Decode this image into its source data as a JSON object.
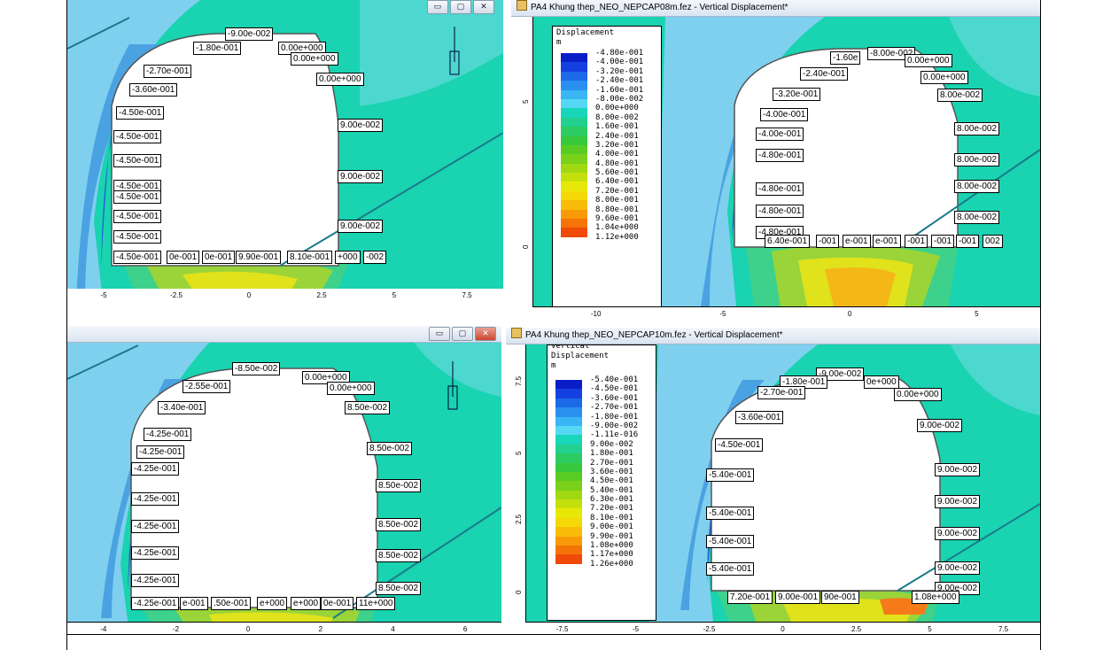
{
  "panels": {
    "top_left": {
      "title": "",
      "labels": [
        {
          "text": "-9.00e-002",
          "x": 178,
          "y": 31
        },
        {
          "text": "-1.80e-001",
          "x": 142,
          "y": 47
        },
        {
          "text": "0.00e+000",
          "x": 238,
          "y": 47
        },
        {
          "text": "0.00e+000",
          "x": 252,
          "y": 59
        },
        {
          "text": "-2.70e-001",
          "x": 86,
          "y": 73
        },
        {
          "text": "-3.60e-001",
          "x": 70,
          "y": 94
        },
        {
          "text": "0.00e+000",
          "x": 281,
          "y": 82
        },
        {
          "text": "-4.50e-001",
          "x": 55,
          "y": 120
        },
        {
          "text": "9.00e-002",
          "x": 305,
          "y": 134
        },
        {
          "text": "-4.50e-001",
          "x": 52,
          "y": 147
        },
        {
          "text": "-4.50e-001",
          "x": 52,
          "y": 174
        },
        {
          "text": "9.00e-002",
          "x": 305,
          "y": 192
        },
        {
          "text": "-4.50e-001",
          "x": 52,
          "y": 203
        },
        {
          "text": "-4.50e-001",
          "x": 52,
          "y": 215
        },
        {
          "text": "-4.50e-001",
          "x": 52,
          "y": 237
        },
        {
          "text": "9.00e-002",
          "x": 305,
          "y": 248
        },
        {
          "text": "-4.50e-001",
          "x": 52,
          "y": 260
        },
        {
          "text": "-4.50e-001",
          "x": 52,
          "y": 283
        },
        {
          "text": "0e-001",
          "x": 112,
          "y": 283
        },
        {
          "text": "0e-001",
          "x": 152,
          "y": 283
        },
        {
          "text": "9.90e-001",
          "x": 190,
          "y": 283
        },
        {
          "text": "8.10e-001",
          "x": 248,
          "y": 283
        },
        {
          "text": "+000",
          "x": 302,
          "y": 283
        },
        {
          "text": "-002",
          "x": 334,
          "y": 283
        }
      ],
      "x_ticks": [
        "-5",
        "-2.5",
        "0",
        "2.5",
        "5",
        "7.5"
      ]
    },
    "top_right": {
      "title": "PA4 Khung thep_NEO_NEPCAP08m.fez - Vertical Displacement*",
      "legend_title": "Displacement\nm",
      "legend_values": [
        "-4.80e-001",
        "-4.00e-001",
        "-3.20e-001",
        "-2.40e-001",
        "-1.60e-001",
        "-8.00e-002",
        "0.00e+000",
        "8.00e-002",
        "1.60e-001",
        "2.40e-001",
        "3.20e-001",
        "4.00e-001",
        "4.80e-001",
        "5.60e-001",
        "6.40e-001",
        "7.20e-001",
        "8.00e-001",
        "8.80e-001",
        "9.60e-001",
        "1.04e+000",
        "1.12e+000"
      ],
      "labels": [
        {
          "text": "-1.60e",
          "x": 336,
          "y": 39
        },
        {
          "text": "-8.00e-002",
          "x": 378,
          "y": 34
        },
        {
          "text": "0.00e+000",
          "x": 420,
          "y": 42
        },
        {
          "text": "-2.40e-001",
          "x": 302,
          "y": 57
        },
        {
          "text": "0.00e+000",
          "x": 438,
          "y": 61
        },
        {
          "text": "-3.20e-001",
          "x": 271,
          "y": 80
        },
        {
          "text": "8.00e-002",
          "x": 457,
          "y": 81
        },
        {
          "text": "-4.00e-001",
          "x": 257,
          "y": 103
        },
        {
          "text": "-4.00e-001",
          "x": 252,
          "y": 125
        },
        {
          "text": "8.00e-002",
          "x": 476,
          "y": 119
        },
        {
          "text": "-4.80e-001",
          "x": 252,
          "y": 149
        },
        {
          "text": "8.00e-002",
          "x": 476,
          "y": 154
        },
        {
          "text": "-4.80e-001",
          "x": 252,
          "y": 187
        },
        {
          "text": "8.00e-002",
          "x": 476,
          "y": 184
        },
        {
          "text": "-4.80e-001",
          "x": 252,
          "y": 212
        },
        {
          "text": "8.00e-002",
          "x": 476,
          "y": 219
        },
        {
          "text": "-4.80e-001",
          "x": 252,
          "y": 236
        },
        {
          "text": "6.40e-001",
          "x": 262,
          "y": 246
        },
        {
          "text": "-001",
          "x": 320,
          "y": 246
        },
        {
          "text": "e-001",
          "x": 350,
          "y": 246
        },
        {
          "text": "e-001",
          "x": 384,
          "y": 246
        },
        {
          "text": "-001",
          "x": 420,
          "y": 246
        },
        {
          "text": "-001",
          "x": 450,
          "y": 246
        },
        {
          "text": "-001",
          "x": 478,
          "y": 246
        },
        {
          "text": "002",
          "x": 508,
          "y": 246
        }
      ],
      "x_ticks": [
        "-10",
        "-5",
        "0",
        "5"
      ],
      "y_ticks": [
        "5",
        "0"
      ]
    },
    "bottom_left": {
      "title": "",
      "labels": [
        {
          "text": "-8.50e-002",
          "x": 186,
          "y": 41
        },
        {
          "text": "0.00e+000",
          "x": 265,
          "y": 51
        },
        {
          "text": "0.00e+000",
          "x": 293,
          "y": 63
        },
        {
          "text": "-2.55e-001",
          "x": 130,
          "y": 61
        },
        {
          "text": "8.50e-002",
          "x": 313,
          "y": 85
        },
        {
          "text": "-3.40e-001",
          "x": 102,
          "y": 85
        },
        {
          "text": "-4.25e-001",
          "x": 86,
          "y": 115
        },
        {
          "text": "-4.25e-001",
          "x": 78,
          "y": 135
        },
        {
          "text": "8.50e-002",
          "x": 338,
          "y": 131
        },
        {
          "text": "-4.25e-001",
          "x": 72,
          "y": 154
        },
        {
          "text": "8.50e-002",
          "x": 348,
          "y": 173
        },
        {
          "text": "-4.25e-001",
          "x": 72,
          "y": 188
        },
        {
          "text": "-4.25e-001",
          "x": 72,
          "y": 219
        },
        {
          "text": "8.50e-002",
          "x": 348,
          "y": 217
        },
        {
          "text": "-4.25e-001",
          "x": 72,
          "y": 249
        },
        {
          "text": "8.50e-002",
          "x": 348,
          "y": 252
        },
        {
          "text": "-4.25e-001",
          "x": 72,
          "y": 280
        },
        {
          "text": "8.50e-002",
          "x": 348,
          "y": 289
        },
        {
          "text": "-4.25e-001",
          "x": 72,
          "y": 306
        },
        {
          "text": "e-001",
          "x": 127,
          "y": 306
        },
        {
          "text": ".50e-001",
          "x": 162,
          "y": 306
        },
        {
          "text": "e+000",
          "x": 214,
          "y": 306
        },
        {
          "text": "e+000",
          "x": 252,
          "y": 306
        },
        {
          "text": "0e-001",
          "x": 286,
          "y": 306
        },
        {
          "text": "11e+000",
          "x": 326,
          "y": 306
        }
      ],
      "x_ticks": [
        "-4",
        "-2",
        "0",
        "2",
        "4",
        "6"
      ]
    },
    "bottom_right": {
      "title": "PA4 Khung thep_NEO_NEPCAP10m.fez - Vertical Displacement*",
      "legend_title": "Vertical\nDisplacement\nm",
      "legend_values": [
        "-5.40e-001",
        "-4.50e-001",
        "-3.60e-001",
        "-2.70e-001",
        "-1.80e-001",
        "-9.00e-002",
        "-1.11e-016",
        "9.00e-002",
        "1.80e-001",
        "2.70e-001",
        "3.60e-001",
        "4.50e-001",
        "5.40e-001",
        "6.30e-001",
        "7.20e-001",
        "8.10e-001",
        "9.00e-001",
        "9.90e-001",
        "1.08e+000",
        "1.17e+000",
        "1.26e+000"
      ],
      "labels": [
        {
          "text": "-9.00e-002",
          "x": 328,
          "y": 26
        },
        {
          "text": "-1.80e-001",
          "x": 287,
          "y": 35
        },
        {
          "text": "0e+000",
          "x": 382,
          "y": 35
        },
        {
          "text": "-2.70e-001",
          "x": 262,
          "y": 47
        },
        {
          "text": "0.00e+000",
          "x": 416,
          "y": 49
        },
        {
          "text": "-3.60e-001",
          "x": 237,
          "y": 75
        },
        {
          "text": "9.00e-002",
          "x": 442,
          "y": 84
        },
        {
          "text": "-4.50e-001",
          "x": 214,
          "y": 106
        },
        {
          "text": "9.00e-002",
          "x": 462,
          "y": 134
        },
        {
          "text": "-5.40e-001",
          "x": 204,
          "y": 140
        },
        {
          "text": "9.00e-002",
          "x": 462,
          "y": 170
        },
        {
          "text": "-5.40e-001",
          "x": 204,
          "y": 183
        },
        {
          "text": "9.00e-002",
          "x": 462,
          "y": 206
        },
        {
          "text": "-5.40e-001",
          "x": 204,
          "y": 215
        },
        {
          "text": "9.00e-002",
          "x": 462,
          "y": 245
        },
        {
          "text": "-5.40e-001",
          "x": 204,
          "y": 246
        },
        {
          "text": "9.00e-002",
          "x": 462,
          "y": 268
        },
        {
          "text": "7.20e-001",
          "x": 228,
          "y": 278
        },
        {
          "text": "9.00e-001",
          "x": 282,
          "y": 278
        },
        {
          "text": "90e-001",
          "x": 334,
          "y": 278
        },
        {
          "text": "1.08e+000",
          "x": 436,
          "y": 278
        }
      ],
      "x_ticks": [
        "-7.5",
        "-5",
        "-2.5",
        "0",
        "2.5",
        "5",
        "7.5"
      ],
      "y_ticks": [
        "7.5",
        "5",
        "2.5",
        "0"
      ]
    }
  },
  "window_buttons": {
    "minimize": "▭",
    "maximize": "▢",
    "close": "✕"
  },
  "colors": {
    "ground": "#19d3b1",
    "legend_colors": [
      "#0a1ec8",
      "#1540e0",
      "#1c6ae8",
      "#2a90f0",
      "#3ab6f4",
      "#55d8f4",
      "#1ad6b8",
      "#22d090",
      "#2ccc62",
      "#38c83c",
      "#58cc22",
      "#7ad01a",
      "#a0d812",
      "#c4e00c",
      "#e8e808",
      "#f4d808",
      "#f8bc08",
      "#f89a08",
      "#f47408",
      "#f04a08",
      "#e81010"
    ]
  }
}
